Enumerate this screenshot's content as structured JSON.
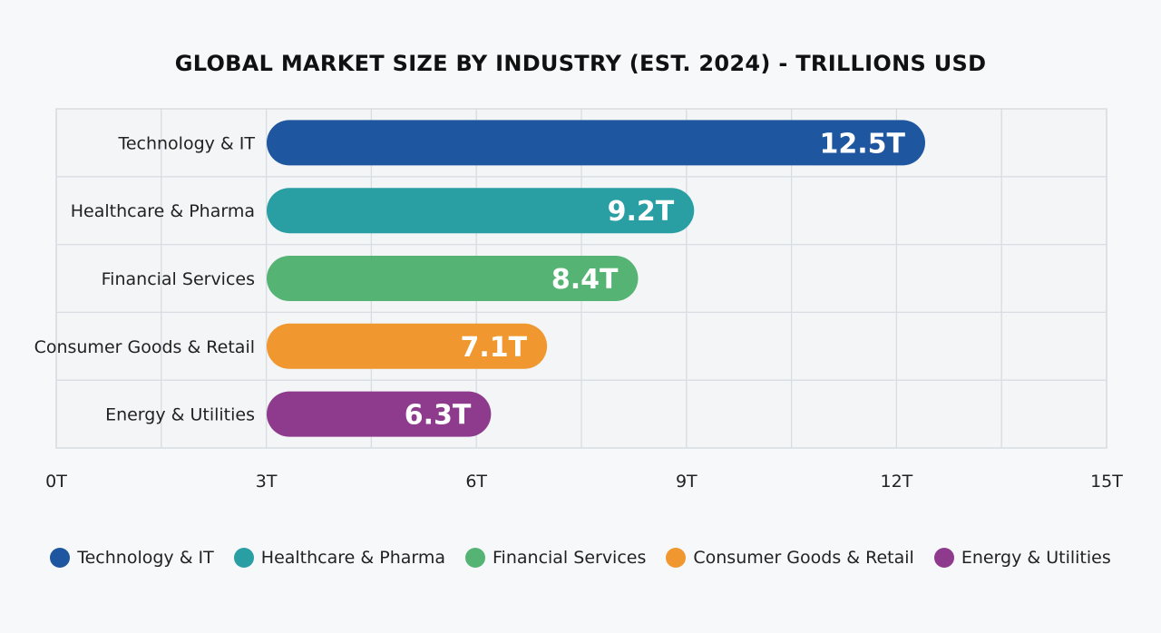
{
  "chart_data": {
    "type": "bar",
    "orientation": "horizontal",
    "title": "GLOBAL MARKET SIZE BY INDUSTRY (EST. 2024) - TRILLIONS USD",
    "categories": [
      "Technology & IT",
      "Healthcare & Pharma",
      "Financial Services",
      "Consumer Goods & Retail",
      "Energy & Utilities"
    ],
    "values": [
      12.5,
      9.2,
      8.4,
      7.1,
      6.3
    ],
    "value_labels": [
      "12.5T",
      "9.2T",
      "8.4T",
      "7.1T",
      "6.3T"
    ],
    "colors": [
      "#1f56a0",
      "#2a9fa3",
      "#55b474",
      "#f0982f",
      "#8e3b8e"
    ],
    "xlim": [
      0,
      15
    ],
    "xticks": [
      0,
      3,
      6,
      9,
      12,
      15
    ],
    "xtick_labels": [
      "0T",
      "3T",
      "6T",
      "9T",
      "12T",
      "15T"
    ],
    "xlabel": "",
    "ylabel": "",
    "grid": true,
    "legend": {
      "position": "bottom",
      "entries": [
        "Technology & IT",
        "Healthcare & Pharma",
        "Financial Services",
        "Consumer Goods & Retail",
        "Energy & Utilities"
      ]
    }
  }
}
